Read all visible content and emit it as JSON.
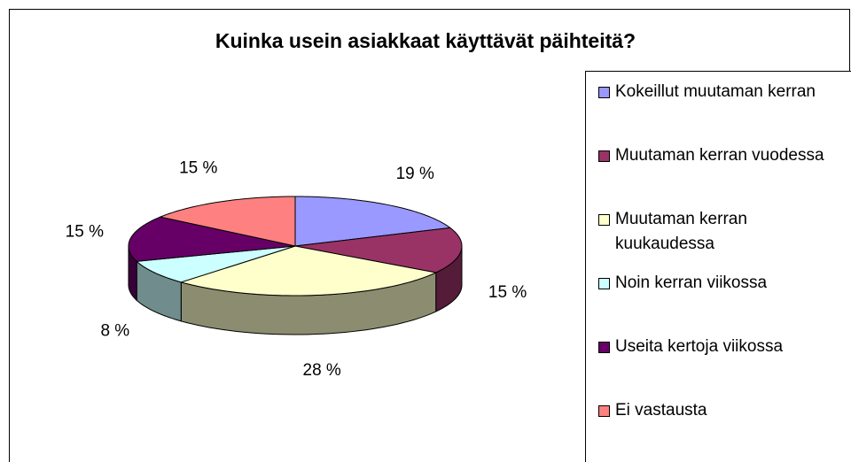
{
  "chart_data": {
    "type": "pie3d",
    "title": "Kuinka usein asiakkaat käyttävät päihteitä?",
    "categories": [
      "Kokeillut muutaman kerran",
      "Muutaman kerran vuodessa",
      "Muutaman kerran kuukaudessa",
      "Noin kerran viikossa",
      "Useita kertoja viikossa",
      "Ei vastausta"
    ],
    "values": [
      19,
      15,
      28,
      8,
      15,
      15
    ],
    "value_labels": [
      "19 %",
      "15 %",
      "28 %",
      "8 %",
      "15 %",
      "15 %"
    ],
    "colors": [
      "#9999ff",
      "#993366",
      "#ffffcc",
      "#ccffff",
      "#660066",
      "#ff8080"
    ],
    "legend": "right"
  }
}
